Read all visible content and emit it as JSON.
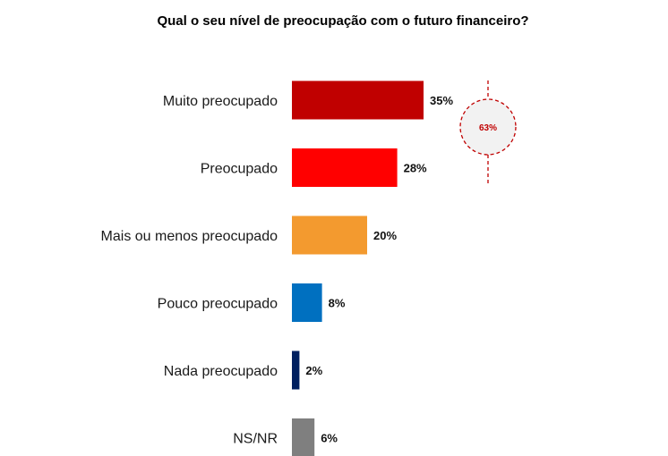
{
  "chart_data": {
    "type": "bar",
    "orientation": "horizontal",
    "title": "Qual o seu nível de preocupação com o futuro financeiro?",
    "categories": [
      "Muito preocupado",
      "Preocupado",
      "Mais ou menos preocupado",
      "Pouco preocupado",
      "Nada preocupado",
      "NS/NR"
    ],
    "values": [
      35,
      28,
      20,
      8,
      2,
      6
    ],
    "value_labels": [
      "35%",
      "28%",
      "20%",
      "8%",
      "2%",
      "6%"
    ],
    "colors": [
      "#C00000",
      "#FF0000",
      "#F39A2F",
      "#0070C0",
      "#002060",
      "#7F7F7F"
    ],
    "unit": "%",
    "grid": false,
    "legend": "none",
    "annotation": {
      "label": "63%",
      "value": 63,
      "applies_to": [
        "Muito preocupado",
        "Preocupado"
      ],
      "style": "dashed-circle",
      "color": "#C00000",
      "fill": "#F2F2F2"
    }
  }
}
